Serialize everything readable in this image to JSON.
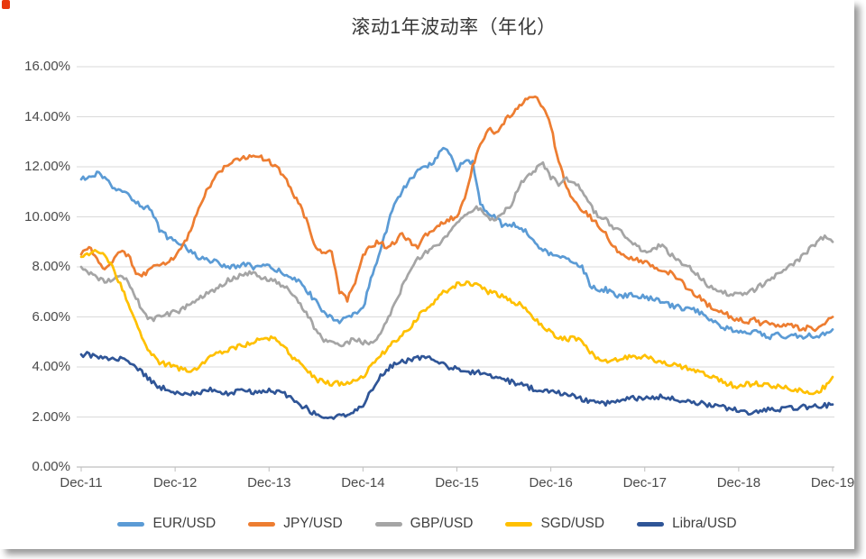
{
  "page": {
    "title": "滚动1年波动率（年化）"
  },
  "chart_data": {
    "type": "line",
    "title": "滚动1年波动率（年化）",
    "x_tick_labels": [
      "Dec-11",
      "Dec-12",
      "Dec-13",
      "Dec-14",
      "Dec-15",
      "Dec-16",
      "Dec-17",
      "Dec-18",
      "Dec-19"
    ],
    "y_tick_labels": [
      "0.00%",
      "2.00%",
      "4.00%",
      "6.00%",
      "8.00%",
      "10.00%",
      "12.00%",
      "14.00%",
      "16.00%"
    ],
    "y_axis": {
      "min": 0,
      "max": 16,
      "step": 2,
      "unit": "%"
    },
    "x_axis": {
      "start": "Dec-11",
      "end": "Dec-19",
      "points_per_year": 12
    },
    "grid": "horizontal",
    "legend_position": "bottom",
    "colors": {
      "grid": "#D9D9D9",
      "axis": "#BFBFBF",
      "tick_text": "#4a4a4a",
      "title_text": "#383838"
    },
    "series": [
      {
        "name": "EUR/USD",
        "color": "#5B9BD5",
        "values": [
          11.5,
          11.55,
          11.75,
          11.5,
          11.2,
          11.0,
          10.9,
          10.6,
          10.4,
          10.3,
          9.5,
          9.2,
          9.0,
          8.9,
          8.6,
          8.4,
          8.3,
          8.2,
          8.1,
          8.0,
          8.0,
          8.1,
          8.0,
          8.0,
          8.0,
          7.85,
          7.75,
          7.55,
          7.35,
          7.0,
          6.6,
          6.2,
          6.0,
          5.8,
          5.95,
          6.1,
          6.3,
          7.5,
          8.5,
          9.5,
          10.5,
          11.0,
          11.5,
          11.8,
          12.0,
          12.2,
          12.7,
          12.55,
          11.9,
          12.3,
          12.2,
          10.5,
          10.2,
          10.0,
          9.6,
          9.7,
          9.6,
          9.4,
          8.9,
          8.7,
          8.5,
          8.4,
          8.3,
          8.2,
          8.0,
          7.3,
          7.0,
          7.1,
          6.9,
          6.8,
          6.9,
          6.8,
          6.8,
          6.7,
          6.6,
          6.5,
          6.4,
          6.35,
          6.3,
          6.2,
          6.0,
          5.8,
          5.6,
          5.5,
          5.4,
          5.3,
          5.4,
          5.3,
          5.2,
          5.3,
          5.2,
          5.3,
          5.2,
          5.3,
          5.2,
          5.3,
          5.5
        ]
      },
      {
        "name": "JPY/USD",
        "color": "#ED7D31",
        "values": [
          8.5,
          8.8,
          8.3,
          7.9,
          8.2,
          8.6,
          8.5,
          7.8,
          7.7,
          8.0,
          8.0,
          8.2,
          8.4,
          8.8,
          9.5,
          10.3,
          11.0,
          11.5,
          11.9,
          12.1,
          12.3,
          12.4,
          12.5,
          12.4,
          12.2,
          12.0,
          11.6,
          11.0,
          10.4,
          9.7,
          8.7,
          8.5,
          8.7,
          7.0,
          6.7,
          7.3,
          8.5,
          8.8,
          9.0,
          8.8,
          9.0,
          9.3,
          9.0,
          8.8,
          9.3,
          9.5,
          9.7,
          9.9,
          10.0,
          10.8,
          12.0,
          12.9,
          13.5,
          13.4,
          13.8,
          14.1,
          14.4,
          14.7,
          14.8,
          14.4,
          13.6,
          12.2,
          11.2,
          10.6,
          10.3,
          10.0,
          9.7,
          9.4,
          8.8,
          8.5,
          8.3,
          8.3,
          8.2,
          8.0,
          7.9,
          7.8,
          7.6,
          7.3,
          7.0,
          6.8,
          6.5,
          6.3,
          6.2,
          6.0,
          5.9,
          5.8,
          5.9,
          5.7,
          5.8,
          5.6,
          5.7,
          5.6,
          5.5,
          5.6,
          5.5,
          5.7,
          6.0
        ]
      },
      {
        "name": "GBP/USD",
        "color": "#A5A5A5",
        "values": [
          8.0,
          7.8,
          7.6,
          7.4,
          7.5,
          7.6,
          7.4,
          6.8,
          6.1,
          5.9,
          6.0,
          6.1,
          6.2,
          6.3,
          6.5,
          6.7,
          6.9,
          7.1,
          7.3,
          7.5,
          7.6,
          7.7,
          7.8,
          7.6,
          7.5,
          7.4,
          7.2,
          6.9,
          6.5,
          6.0,
          5.5,
          5.1,
          5.0,
          4.9,
          5.0,
          5.1,
          5.0,
          5.0,
          5.2,
          5.8,
          6.5,
          7.2,
          7.8,
          8.3,
          8.6,
          8.8,
          9.0,
          9.4,
          9.7,
          10.0,
          10.3,
          10.4,
          10.0,
          9.9,
          10.2,
          10.5,
          11.3,
          11.6,
          11.9,
          12.1,
          11.6,
          11.3,
          11.5,
          11.4,
          11.0,
          10.5,
          10.0,
          9.9,
          9.6,
          9.4,
          9.0,
          8.8,
          8.6,
          8.7,
          8.9,
          8.6,
          8.3,
          8.1,
          7.9,
          7.6,
          7.3,
          7.1,
          7.0,
          6.9,
          6.9,
          7.0,
          7.1,
          7.3,
          7.5,
          7.7,
          7.9,
          8.1,
          8.4,
          8.7,
          9.0,
          9.2,
          9.0
        ]
      },
      {
        "name": "SGD/USD",
        "color": "#FFC000",
        "values": [
          8.4,
          8.5,
          8.6,
          8.5,
          8.0,
          7.3,
          6.6,
          5.8,
          5.0,
          4.5,
          4.2,
          4.1,
          4.0,
          3.9,
          3.8,
          4.0,
          4.3,
          4.5,
          4.6,
          4.7,
          4.8,
          4.9,
          5.0,
          5.1,
          5.15,
          5.1,
          4.8,
          4.4,
          4.1,
          3.8,
          3.5,
          3.4,
          3.3,
          3.35,
          3.4,
          3.45,
          3.6,
          4.0,
          4.4,
          4.7,
          5.0,
          5.3,
          5.6,
          6.0,
          6.3,
          6.6,
          6.9,
          7.1,
          7.3,
          7.35,
          7.3,
          7.2,
          7.0,
          6.9,
          6.8,
          6.6,
          6.5,
          6.3,
          5.9,
          5.6,
          5.4,
          5.2,
          5.1,
          5.2,
          5.0,
          4.6,
          4.3,
          4.2,
          4.3,
          4.35,
          4.4,
          4.4,
          4.4,
          4.3,
          4.2,
          4.1,
          4.05,
          4.0,
          3.9,
          3.8,
          3.7,
          3.6,
          3.4,
          3.3,
          3.2,
          3.3,
          3.35,
          3.3,
          3.25,
          3.2,
          3.15,
          3.1,
          3.05,
          3.0,
          3.0,
          3.2,
          3.6
        ]
      },
      {
        "name": "Libra/USD",
        "color": "#2F5597",
        "values": [
          4.5,
          4.5,
          4.4,
          4.35,
          4.3,
          4.35,
          4.2,
          4.0,
          3.7,
          3.4,
          3.2,
          3.1,
          3.0,
          2.95,
          2.9,
          3.0,
          3.05,
          3.1,
          3.0,
          2.95,
          3.0,
          3.05,
          3.0,
          3.0,
          3.05,
          3.0,
          2.9,
          2.7,
          2.5,
          2.3,
          2.1,
          2.0,
          2.0,
          2.05,
          2.1,
          2.3,
          2.5,
          3.0,
          3.5,
          3.9,
          4.1,
          4.2,
          4.3,
          4.35,
          4.4,
          4.3,
          4.2,
          4.0,
          3.9,
          3.75,
          3.8,
          3.75,
          3.7,
          3.6,
          3.5,
          3.4,
          3.3,
          3.2,
          3.1,
          3.05,
          3.0,
          2.95,
          2.9,
          2.8,
          2.7,
          2.6,
          2.55,
          2.55,
          2.6,
          2.7,
          2.75,
          2.75,
          2.75,
          2.8,
          2.8,
          2.75,
          2.7,
          2.65,
          2.6,
          2.55,
          2.5,
          2.45,
          2.4,
          2.3,
          2.25,
          2.2,
          2.2,
          2.25,
          2.3,
          2.3,
          2.35,
          2.35,
          2.4,
          2.4,
          2.45,
          2.45,
          2.5
        ]
      }
    ]
  }
}
